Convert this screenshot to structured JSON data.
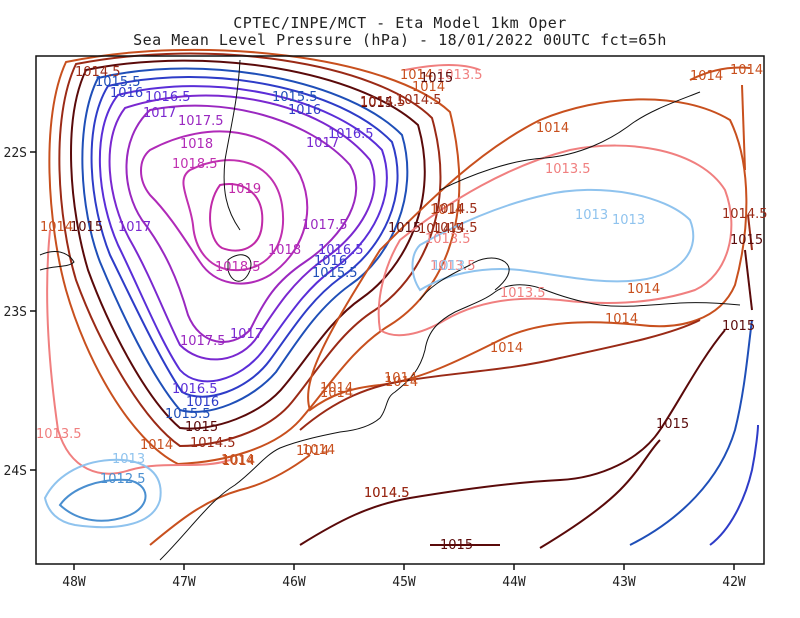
{
  "title_line1": "CPTEC/INPE/MCT -  Eta Model 1km Oper",
  "title_line2": "Sea Mean Level Pressure (hPa) - 18/01/2022 00UTC fct=65h",
  "axes": {
    "x_ticks": [
      "48W",
      "47W",
      "46W",
      "45W",
      "44W",
      "43W",
      "42W"
    ],
    "y_ticks": [
      "22S",
      "23S",
      "24S"
    ]
  },
  "contour_colors": {
    "1012.5": "#4a8fd0",
    "1013": "#8fc3ee",
    "1013.5": "#f07f7f",
    "1014": "#c8501e",
    "1014.5": "#9a2a16",
    "1015": "#5a0a0a",
    "1015.5": "#1f4fb8",
    "1016": "#2e3cc8",
    "1016.5": "#5a2ed8",
    "1017": "#7a28d0",
    "1017.5": "#9a28c0",
    "1018": "#b02ab8",
    "1018.5": "#c030b0",
    "1019": "#c02aa8"
  },
  "contour_labels": [
    {
      "text": "1014.5",
      "level": "1014.5"
    },
    {
      "text": "1015.5",
      "level": "1015.5"
    },
    {
      "text": "1016",
      "level": "1016"
    },
    {
      "text": "1016.5",
      "level": "1016.5"
    },
    {
      "text": "1017",
      "level": "1017"
    },
    {
      "text": "1017.5",
      "level": "1017.5"
    },
    {
      "text": "1018",
      "level": "1018"
    },
    {
      "text": "1018.5",
      "level": "1018.5"
    },
    {
      "text": "1019",
      "level": "1019"
    },
    {
      "text": "1018",
      "level": "1018"
    },
    {
      "text": "1018.5",
      "level": "1018.5"
    },
    {
      "text": "1017.5",
      "level": "1017.5"
    },
    {
      "text": "1017",
      "level": "1017"
    },
    {
      "text": "1017.5",
      "level": "1017.5"
    },
    {
      "text": "1017",
      "level": "1017"
    },
    {
      "text": "1016.5",
      "level": "1016.5"
    },
    {
      "text": "1016",
      "level": "1016"
    },
    {
      "text": "1015.5",
      "level": "1015.5"
    },
    {
      "text": "1015",
      "level": "1015"
    },
    {
      "text": "1014.5",
      "level": "1014.5"
    },
    {
      "text": "1014",
      "level": "1014"
    },
    {
      "text": "1015.5",
      "level": "1015.5"
    },
    {
      "text": "1016",
      "level": "1016"
    },
    {
      "text": "1016.5",
      "level": "1016.5"
    },
    {
      "text": "1017",
      "level": "1017"
    },
    {
      "text": "1015.5",
      "level": "1015.5"
    },
    {
      "text": "1016",
      "level": "1016"
    },
    {
      "text": "1016.5",
      "level": "1016.5"
    },
    {
      "text": "1015",
      "level": "1015"
    },
    {
      "text": "1014.5",
      "level": "1014.5"
    },
    {
      "text": "1015",
      "level": "1015"
    },
    {
      "text": "1014",
      "level": "1014"
    },
    {
      "text": "1013.5",
      "level": "1013.5"
    },
    {
      "text": "1013",
      "level": "1013"
    },
    {
      "text": "1014",
      "level": "1014"
    },
    {
      "text": "1014",
      "level": "1014"
    },
    {
      "text": "1013.5",
      "level": "1013.5"
    },
    {
      "text": "1014",
      "level": "1014"
    },
    {
      "text": "1014",
      "level": "1014"
    },
    {
      "text": "1014",
      "level": "1014"
    },
    {
      "text": "1014",
      "level": "1014"
    },
    {
      "text": "1013.5",
      "level": "1013.5"
    },
    {
      "text": "1013",
      "level": "1013"
    },
    {
      "text": "1013",
      "level": "1013"
    },
    {
      "text": "1013.5",
      "level": "1013.5"
    },
    {
      "text": "1013.5",
      "level": "1013.5"
    },
    {
      "text": "1014",
      "level": "1014"
    },
    {
      "text": "1014",
      "level": "1014"
    },
    {
      "text": "1014",
      "level": "1014"
    },
    {
      "text": "1014",
      "level": "1014"
    },
    {
      "text": "1014.5",
      "level": "1014.5"
    },
    {
      "text": "1015",
      "level": "1015"
    },
    {
      "text": "1014.5",
      "level": "1014.5"
    },
    {
      "text": "1015",
      "level": "1015"
    },
    {
      "text": "1014",
      "level": "1014"
    },
    {
      "text": "1014.5",
      "level": "1014.5"
    },
    {
      "text": "1014",
      "level": "1014"
    },
    {
      "text": "1014.5",
      "level": "1014.5"
    },
    {
      "text": "1014",
      "level": "1014"
    },
    {
      "text": "1015",
      "level": "1015"
    },
    {
      "text": "1015",
      "level": "1015"
    },
    {
      "text": "1013.5",
      "level": "1013.5"
    },
    {
      "text": "1013",
      "level": "1013"
    },
    {
      "text": "1012.5",
      "level": "1012.5"
    },
    {
      "text": "1014",
      "level": "1014"
    },
    {
      "text": "1014",
      "level": "1014"
    },
    {
      "text": "1015",
      "level": "1015"
    },
    {
      "text": "1014.5",
      "level": "1014.5"
    },
    {
      "text": "1015",
      "level": "1015"
    },
    {
      "text": "1014.5",
      "level": "1014.5"
    },
    {
      "text": "1014",
      "level": "1014"
    },
    {
      "text": "1014",
      "level": "1014"
    },
    {
      "text": "1014.5",
      "level": "1014.5"
    }
  ]
}
